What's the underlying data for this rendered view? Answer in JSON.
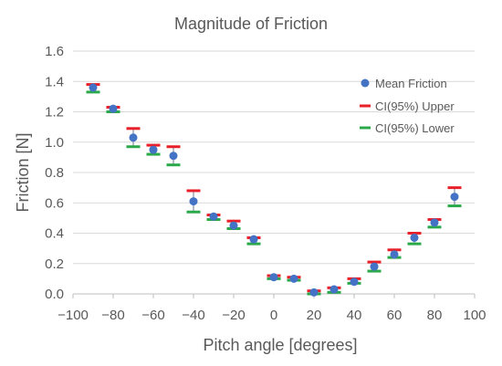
{
  "chart_data": {
    "type": "scatter",
    "title": "Magnitude of Friction",
    "xlabel": "Pitch angle [degrees]",
    "ylabel": "Friction [N]",
    "xlim": [
      -100,
      100
    ],
    "ylim": [
      0,
      1.6
    ],
    "xticks": [
      -100,
      -80,
      -60,
      -40,
      -20,
      0,
      20,
      40,
      60,
      80,
      100
    ],
    "xtick_labels": [
      "−100",
      "−80",
      "−60",
      "−40",
      "−20",
      "0",
      "20",
      "40",
      "60",
      "80",
      "100"
    ],
    "yticks": [
      0,
      0.2,
      0.4,
      0.6,
      0.8,
      1.0,
      1.2,
      1.4,
      1.6
    ],
    "ytick_labels": [
      "0.0",
      "0.2",
      "0.4",
      "0.6",
      "0.8",
      "1.0",
      "1.2",
      "1.4",
      "1.6"
    ],
    "grid": true,
    "legend_position": "top-right",
    "x": [
      -90,
      -80,
      -70,
      -60,
      -50,
      -40,
      -30,
      -20,
      -10,
      0,
      10,
      20,
      30,
      40,
      50,
      60,
      70,
      80,
      90
    ],
    "series": [
      {
        "name": "Mean Friction",
        "marker": "circle",
        "color": "#4472c4",
        "values": [
          1.36,
          1.22,
          1.03,
          0.95,
          0.91,
          0.61,
          0.51,
          0.45,
          0.36,
          0.11,
          0.1,
          0.01,
          0.03,
          0.08,
          0.18,
          0.26,
          0.37,
          0.47,
          0.64
        ]
      },
      {
        "name": "CI(95%) Upper",
        "marker": "dash",
        "color": "#e8202a",
        "values": [
          1.38,
          1.23,
          1.09,
          0.98,
          0.97,
          0.68,
          0.52,
          0.48,
          0.37,
          0.12,
          0.11,
          0.02,
          0.04,
          0.1,
          0.21,
          0.29,
          0.4,
          0.49,
          0.7
        ]
      },
      {
        "name": "CI(95%) Lower",
        "marker": "dash",
        "color": "#2ba84a",
        "values": [
          1.33,
          1.2,
          0.97,
          0.92,
          0.85,
          0.54,
          0.49,
          0.43,
          0.33,
          0.1,
          0.09,
          0.0,
          0.01,
          0.07,
          0.15,
          0.24,
          0.33,
          0.44,
          0.58
        ]
      }
    ],
    "stem_color": "#7f8fa6"
  }
}
